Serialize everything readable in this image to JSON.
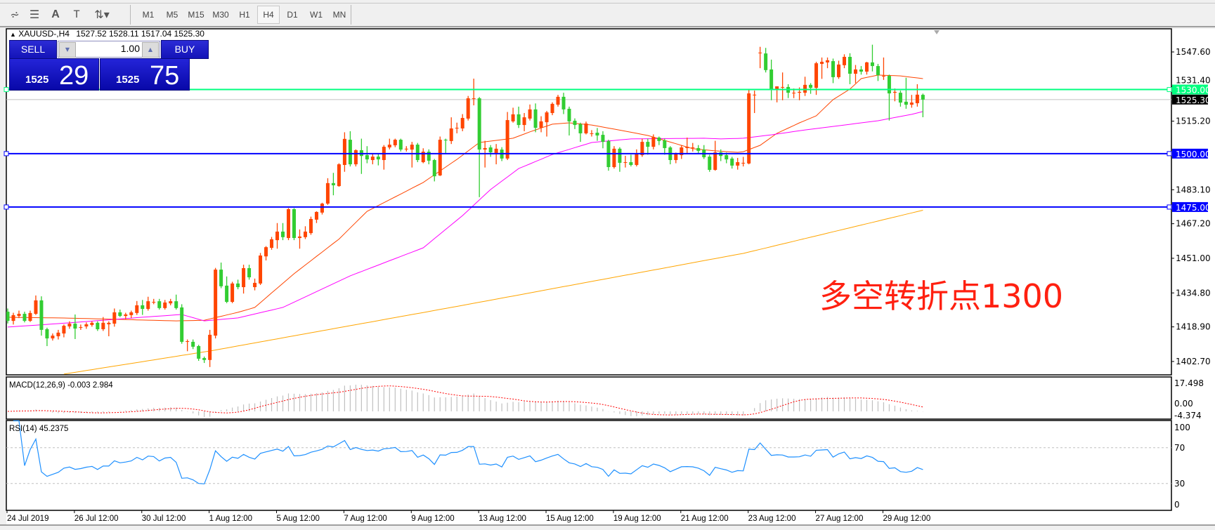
{
  "toolbar": {
    "icons": [
      "elliott-wave-icon",
      "fibonacci-icon",
      "text-icon",
      "text-label-icon",
      "arrows-icon"
    ],
    "timeframes": [
      "M1",
      "M5",
      "M15",
      "M30",
      "H1",
      "H4",
      "D1",
      "W1",
      "MN"
    ],
    "active_timeframe": "H4"
  },
  "chart_header": {
    "symbol": "XAUUSD-,H4",
    "ohlc": "1527.52 1528.11 1517.04 1525.30"
  },
  "trade_panel": {
    "sell_label": "SELL",
    "buy_label": "BUY",
    "lot_value": "1.00",
    "sell_price_prefix": "1525",
    "sell_price_main": "29",
    "buy_price_prefix": "1525",
    "buy_price_main": "75"
  },
  "annotation": "多空转折点1300",
  "colors": {
    "bull_candle": "#ff4500",
    "bear_candle": "#32cd32",
    "ma_fast": "#ff4500",
    "ma_mid": "#ff00ff",
    "ma_slow": "#ffa500",
    "level_green": "#00ff7f",
    "level_blue": "#0000ff",
    "rsi_line": "#1e90ff",
    "macd_hist": "#c0c0c0",
    "macd_signal": "#ff0000"
  },
  "chart_data": {
    "type": "candlestick",
    "price_axis_labels": [
      "1547.60",
      "1531.40",
      "1515.20",
      "1483.10",
      "1467.20",
      "1451.00",
      "1434.80",
      "1418.90",
      "1402.70"
    ],
    "price_axis_values": [
      1547.6,
      1531.4,
      1515.2,
      1483.1,
      1467.2,
      1451.0,
      1434.8,
      1418.9,
      1402.7
    ],
    "ylim": [
      1398.5,
      1560.5
    ],
    "time_labels": [
      "24 Jul 2019",
      "26 Jul 12:00",
      "30 Jul 12:00",
      "1 Aug 12:00",
      "5 Aug 12:00",
      "7 Aug 12:00",
      "9 Aug 12:00",
      "13 Aug 12:00",
      "15 Aug 12:00",
      "19 Aug 12:00",
      "21 Aug 12:00",
      "23 Aug 12:00",
      "27 Aug 12:00",
      "29 Aug 12:00"
    ],
    "time_label_every_bars": 12,
    "current_price": {
      "value": 1525.3,
      "label": "1525.30"
    },
    "levels": [
      {
        "value": 1530.0,
        "label": "1530.00",
        "color": "#00ff7f"
      },
      {
        "value": 1500.0,
        "label": "1500.00",
        "color": "#0000ff"
      },
      {
        "value": 1475.0,
        "label": "1475.00",
        "color": "#0000ff"
      }
    ],
    "ohlc": [
      [
        1426.0,
        1427.5,
        1420.5,
        1421.7
      ],
      [
        1421.7,
        1425.5,
        1420.0,
        1424.4
      ],
      [
        1424.0,
        1426.5,
        1423.0,
        1425.0
      ],
      [
        1425.0,
        1426.0,
        1421.0,
        1421.7
      ],
      [
        1421.7,
        1426.5,
        1421.2,
        1425.4
      ],
      [
        1425.0,
        1433.6,
        1424.5,
        1431.3
      ],
      [
        1431.3,
        1433.2,
        1414.8,
        1417.5
      ],
      [
        1417.8,
        1418.5,
        1409.9,
        1413.5
      ],
      [
        1413.5,
        1415.8,
        1412.5,
        1414.8
      ],
      [
        1414.5,
        1417.5,
        1413.0,
        1416.2
      ],
      [
        1415.8,
        1420.0,
        1414.0,
        1419.4
      ],
      [
        1419.1,
        1421.5,
        1418.0,
        1420.4
      ],
      [
        1420.4,
        1424.7,
        1413.2,
        1418.1
      ],
      [
        1418.8,
        1420.0,
        1417.5,
        1418.8
      ],
      [
        1419.1,
        1421.0,
        1418.0,
        1420.1
      ],
      [
        1419.8,
        1421.5,
        1419.0,
        1420.8
      ],
      [
        1420.8,
        1421.5,
        1417.0,
        1417.8
      ],
      [
        1417.8,
        1423.5,
        1417.0,
        1420.8
      ],
      [
        1420.1,
        1421.5,
        1414.5,
        1420.8
      ],
      [
        1420.4,
        1427.5,
        1419.0,
        1425.7
      ],
      [
        1425.7,
        1427.0,
        1423.5,
        1424.0
      ],
      [
        1424.0,
        1425.5,
        1422.5,
        1424.7
      ],
      [
        1424.4,
        1426.5,
        1423.0,
        1425.7
      ],
      [
        1425.4,
        1431.0,
        1424.5,
        1429.0
      ],
      [
        1429.0,
        1431.5,
        1424.5,
        1427.3
      ],
      [
        1427.3,
        1433.0,
        1426.5,
        1430.9
      ],
      [
        1430.6,
        1432.0,
        1429.5,
        1430.6
      ],
      [
        1430.9,
        1432.0,
        1427.0,
        1427.7
      ],
      [
        1427.7,
        1431.5,
        1427.0,
        1430.3
      ],
      [
        1429.9,
        1432.0,
        1429.0,
        1430.9
      ],
      [
        1430.9,
        1434.0,
        1427.0,
        1427.7
      ],
      [
        1428.0,
        1429.5,
        1411.0,
        1411.9
      ],
      [
        1412.2,
        1413.0,
        1407.5,
        1412.2
      ],
      [
        1411.9,
        1413.0,
        1408.5,
        1409.6
      ],
      [
        1409.9,
        1410.5,
        1403.0,
        1404.0
      ],
      [
        1404.3,
        1405.0,
        1402.0,
        1403.4
      ],
      [
        1403.4,
        1417.5,
        1400.1,
        1415.2
      ],
      [
        1414.8,
        1446.5,
        1413.5,
        1445.7
      ],
      [
        1445.7,
        1449.0,
        1437.0,
        1437.9
      ],
      [
        1438.2,
        1442.5,
        1430.0,
        1430.6
      ],
      [
        1430.6,
        1440.0,
        1430.0,
        1439.2
      ],
      [
        1439.2,
        1441.0,
        1436.5,
        1437.5
      ],
      [
        1437.5,
        1448.0,
        1434.5,
        1446.4
      ],
      [
        1446.4,
        1448.0,
        1441.0,
        1442.1
      ],
      [
        1437.5,
        1441.5,
        1436.0,
        1439.5
      ],
      [
        1439.2,
        1453.5,
        1438.5,
        1452.3
      ],
      [
        1451.9,
        1456.7,
        1450.0,
        1456.2
      ],
      [
        1455.9,
        1461.0,
        1455.0,
        1459.9
      ],
      [
        1459.5,
        1467.5,
        1455.5,
        1463.5
      ],
      [
        1463.5,
        1467.5,
        1459.5,
        1460.9
      ],
      [
        1460.5,
        1474.5,
        1459.5,
        1474.0
      ],
      [
        1474.0,
        1474.5,
        1459.5,
        1460.5
      ],
      [
        1460.5,
        1464.5,
        1455.5,
        1461.2
      ],
      [
        1460.9,
        1466.0,
        1460.0,
        1463.5
      ],
      [
        1462.8,
        1470.5,
        1462.0,
        1469.4
      ],
      [
        1469.1,
        1473.0,
        1467.5,
        1472.7
      ],
      [
        1472.4,
        1477.0,
        1471.5,
        1476.6
      ],
      [
        1476.6,
        1488.5,
        1476.0,
        1486.2
      ],
      [
        1486.2,
        1491.0,
        1480.5,
        1485.2
      ],
      [
        1484.8,
        1495.5,
        1484.5,
        1495.0
      ],
      [
        1494.7,
        1510.0,
        1491.5,
        1506.9
      ],
      [
        1506.5,
        1510.5,
        1494.0,
        1495.0
      ],
      [
        1495.0,
        1502.0,
        1494.0,
        1501.6
      ],
      [
        1501.6,
        1507.0,
        1490.5,
        1498.9
      ],
      [
        1499.3,
        1503.5,
        1495.5,
        1497.3
      ],
      [
        1497.0,
        1500.0,
        1495.0,
        1498.6
      ],
      [
        1498.6,
        1500.0,
        1494.5,
        1497.3
      ],
      [
        1497.0,
        1504.0,
        1492.5,
        1503.2
      ],
      [
        1502.9,
        1507.0,
        1502.0,
        1504.2
      ],
      [
        1503.9,
        1507.0,
        1503.0,
        1506.5
      ],
      [
        1506.5,
        1507.0,
        1501.0,
        1501.9
      ],
      [
        1502.3,
        1503.5,
        1501.0,
        1502.3
      ],
      [
        1501.9,
        1505.5,
        1493.5,
        1504.2
      ],
      [
        1504.2,
        1505.0,
        1496.0,
        1497.0
      ],
      [
        1496.0,
        1502.5,
        1495.5,
        1500.9
      ],
      [
        1500.9,
        1502.0,
        1495.0,
        1496.7
      ],
      [
        1497.0,
        1497.5,
        1487.0,
        1489.4
      ],
      [
        1489.8,
        1508.0,
        1489.5,
        1506.5
      ],
      [
        1506.5,
        1507.0,
        1500.0,
        1506.2
      ],
      [
        1505.9,
        1517.0,
        1504.5,
        1511.8
      ],
      [
        1511.8,
        1514.5,
        1509.5,
        1512.1
      ],
      [
        1511.8,
        1518.5,
        1510.5,
        1516.7
      ],
      [
        1516.4,
        1527.0,
        1515.5,
        1525.9
      ],
      [
        1525.9,
        1535.1,
        1522.6,
        1525.9
      ],
      [
        1525.9,
        1526.5,
        1479.6,
        1501.9
      ],
      [
        1501.9,
        1506.0,
        1493.5,
        1502.6
      ],
      [
        1502.9,
        1504.0,
        1498.5,
        1500.6
      ],
      [
        1500.3,
        1504.5,
        1495.0,
        1502.3
      ],
      [
        1501.9,
        1503.0,
        1496.5,
        1497.7
      ],
      [
        1497.7,
        1519.5,
        1497.0,
        1515.7
      ],
      [
        1515.1,
        1521.5,
        1514.5,
        1518.4
      ],
      [
        1518.4,
        1522.0,
        1512.0,
        1513.4
      ],
      [
        1513.4,
        1519.0,
        1510.5,
        1517.0
      ],
      [
        1516.4,
        1523.0,
        1515.5,
        1520.7
      ],
      [
        1520.7,
        1523.5,
        1510.0,
        1512.1
      ],
      [
        1512.1,
        1517.5,
        1510.0,
        1515.1
      ],
      [
        1514.7,
        1520.0,
        1508.0,
        1519.3
      ],
      [
        1519.0,
        1524.0,
        1518.0,
        1523.3
      ],
      [
        1522.9,
        1527.5,
        1522.0,
        1526.6
      ],
      [
        1526.6,
        1528.5,
        1518.5,
        1520.7
      ],
      [
        1521.0,
        1522.0,
        1508.5,
        1515.1
      ],
      [
        1515.4,
        1516.5,
        1511.5,
        1513.4
      ],
      [
        1513.8,
        1514.5,
        1505.5,
        1509.5
      ],
      [
        1509.5,
        1515.0,
        1509.0,
        1514.1
      ],
      [
        1509.5,
        1511.0,
        1508.0,
        1509.5
      ],
      [
        1509.8,
        1512.0,
        1506.0,
        1508.5
      ],
      [
        1508.8,
        1510.5,
        1502.5,
        1505.5
      ],
      [
        1505.9,
        1506.5,
        1492.0,
        1493.7
      ],
      [
        1493.7,
        1503.5,
        1493.0,
        1502.3
      ],
      [
        1502.3,
        1503.0,
        1491.5,
        1495.7
      ],
      [
        1496.0,
        1499.0,
        1493.5,
        1496.0
      ],
      [
        1496.0,
        1499.5,
        1494.0,
        1494.7
      ],
      [
        1494.7,
        1502.0,
        1494.0,
        1499.9
      ],
      [
        1499.3,
        1507.0,
        1498.5,
        1505.5
      ],
      [
        1505.5,
        1507.0,
        1499.5,
        1503.2
      ],
      [
        1503.2,
        1509.0,
        1502.0,
        1507.8
      ],
      [
        1507.5,
        1508.0,
        1504.0,
        1505.9
      ],
      [
        1506.2,
        1507.0,
        1499.5,
        1502.6
      ],
      [
        1502.9,
        1503.5,
        1495.0,
        1497.0
      ],
      [
        1497.0,
        1500.5,
        1495.5,
        1499.9
      ],
      [
        1499.3,
        1504.0,
        1497.5,
        1502.9
      ],
      [
        1502.6,
        1507.5,
        1500.0,
        1503.2
      ],
      [
        1502.6,
        1505.0,
        1501.0,
        1502.9
      ],
      [
        1502.6,
        1504.0,
        1500.0,
        1501.3
      ],
      [
        1501.9,
        1504.0,
        1497.5,
        1498.3
      ],
      [
        1498.6,
        1499.5,
        1491.5,
        1492.4
      ],
      [
        1492.4,
        1506.0,
        1492.0,
        1500.6
      ],
      [
        1500.6,
        1502.0,
        1496.5,
        1498.9
      ],
      [
        1499.3,
        1500.5,
        1495.5,
        1497.3
      ],
      [
        1497.7,
        1498.5,
        1493.0,
        1494.4
      ],
      [
        1494.4,
        1498.0,
        1492.5,
        1496.0
      ],
      [
        1495.7,
        1498.5,
        1494.0,
        1495.7
      ],
      [
        1495.4,
        1529.9,
        1495.0,
        1528.2
      ],
      [
        1527.6,
        1529.5,
        1519.0,
        1527.6
      ],
      [
        1547.3,
        1550.0,
        1540.0,
        1547.3
      ],
      [
        1546.9,
        1549.5,
        1538.0,
        1539.1
      ],
      [
        1539.4,
        1544.0,
        1525.0,
        1530.2
      ],
      [
        1530.2,
        1531.5,
        1524.0,
        1531.5
      ],
      [
        1531.2,
        1538.0,
        1525.0,
        1531.2
      ],
      [
        1531.2,
        1532.5,
        1526.0,
        1528.5
      ],
      [
        1528.5,
        1530.5,
        1526.0,
        1528.5
      ],
      [
        1528.5,
        1531.0,
        1525.0,
        1528.9
      ],
      [
        1528.5,
        1536.0,
        1527.0,
        1532.2
      ],
      [
        1532.2,
        1533.0,
        1528.0,
        1530.8
      ],
      [
        1530.8,
        1543.0,
        1527.5,
        1542.3
      ],
      [
        1542.0,
        1545.0,
        1535.0,
        1543.0
      ],
      [
        1542.7,
        1545.0,
        1540.0,
        1543.7
      ],
      [
        1543.3,
        1544.5,
        1533.0,
        1535.8
      ],
      [
        1535.8,
        1543.5,
        1535.0,
        1541.7
      ],
      [
        1541.4,
        1546.5,
        1540.0,
        1545.3
      ],
      [
        1545.3,
        1547.0,
        1532.5,
        1537.4
      ],
      [
        1537.4,
        1541.5,
        1533.0,
        1539.4
      ],
      [
        1539.4,
        1541.0,
        1537.0,
        1538.4
      ],
      [
        1538.4,
        1543.0,
        1537.0,
        1542.7
      ],
      [
        1542.7,
        1551.0,
        1538.5,
        1541.0
      ],
      [
        1541.0,
        1542.0,
        1534.0,
        1536.8
      ],
      [
        1536.4,
        1545.0,
        1534.5,
        1536.4
      ],
      [
        1536.4,
        1537.0,
        1515.5,
        1528.2
      ],
      [
        1528.5,
        1530.5,
        1524.5,
        1528.9
      ],
      [
        1528.5,
        1529.5,
        1522.0,
        1523.9
      ],
      [
        1524.3,
        1535.5,
        1521.0,
        1522.9
      ],
      [
        1522.9,
        1527.5,
        1521.5,
        1523.9
      ],
      [
        1523.6,
        1532.5,
        1522.0,
        1527.6
      ],
      [
        1527.52,
        1528.11,
        1517.04,
        1525.3
      ]
    ],
    "moving_averages": [
      {
        "role": "fast",
        "color": "#ff4500",
        "points": [
          [
            0,
            1423.4
          ],
          [
            11,
            1423.0
          ],
          [
            30,
            1421.7
          ],
          [
            35,
            1422.0
          ],
          [
            41,
            1425.7
          ],
          [
            44,
            1428.0
          ],
          [
            51,
            1443.8
          ],
          [
            59,
            1460.0
          ],
          [
            64,
            1473.0
          ],
          [
            74,
            1486.5
          ],
          [
            80,
            1497.3
          ],
          [
            84,
            1505.2
          ],
          [
            90,
            1507.2
          ],
          [
            93,
            1510.2
          ],
          [
            97,
            1513.8
          ],
          [
            100,
            1514.4
          ],
          [
            104,
            1513.4
          ],
          [
            109,
            1511.0
          ],
          [
            114,
            1508.5
          ],
          [
            117,
            1506.2
          ],
          [
            122,
            1502.3
          ],
          [
            126,
            1501.3
          ],
          [
            130,
            1500.6
          ],
          [
            131,
            1500.9
          ],
          [
            134,
            1503.9
          ],
          [
            137,
            1509.5
          ],
          [
            141,
            1514.4
          ],
          [
            144,
            1517.7
          ],
          [
            147,
            1525.3
          ],
          [
            150,
            1530.2
          ],
          [
            152,
            1535.1
          ],
          [
            155,
            1536.8
          ],
          [
            159,
            1536.4
          ],
          [
            163,
            1535.1
          ]
        ]
      },
      {
        "role": "mid",
        "color": "#ff00ff",
        "points": [
          [
            0,
            1418.8
          ],
          [
            11,
            1420.8
          ],
          [
            24,
            1423.4
          ],
          [
            31,
            1424.7
          ],
          [
            35,
            1421.7
          ],
          [
            41,
            1423.1
          ],
          [
            49,
            1428.0
          ],
          [
            61,
            1442.8
          ],
          [
            74,
            1455.9
          ],
          [
            81,
            1471.0
          ],
          [
            86,
            1483.2
          ],
          [
            91,
            1493.0
          ],
          [
            97,
            1499.6
          ],
          [
            104,
            1505.2
          ],
          [
            111,
            1506.9
          ],
          [
            124,
            1507.2
          ],
          [
            127,
            1506.9
          ],
          [
            131,
            1507.2
          ],
          [
            136,
            1508.8
          ],
          [
            142,
            1511.1
          ],
          [
            149,
            1513.4
          ],
          [
            155,
            1515.4
          ],
          [
            161,
            1518.4
          ],
          [
            163,
            1519.7
          ]
        ]
      },
      {
        "role": "slow",
        "color": "#ffa500",
        "points": [
          [
            10,
            1396.8
          ],
          [
            36,
            1407.6
          ],
          [
            79,
            1428.0
          ],
          [
            131,
            1453.3
          ],
          [
            163,
            1473.5
          ]
        ]
      }
    ],
    "macd": {
      "label": "MACD(12,26,9) -0.003 2.984",
      "params": [
        12,
        26,
        9
      ],
      "axis_labels": [
        "17.498",
        "0.00",
        "-4.374"
      ],
      "range": [
        -4.374,
        17.498
      ]
    },
    "rsi": {
      "label": "RSI(14) 45.2375",
      "period": 14,
      "axis_labels": [
        "100",
        "70",
        "30",
        "0"
      ],
      "levels": [
        70,
        30
      ]
    }
  }
}
